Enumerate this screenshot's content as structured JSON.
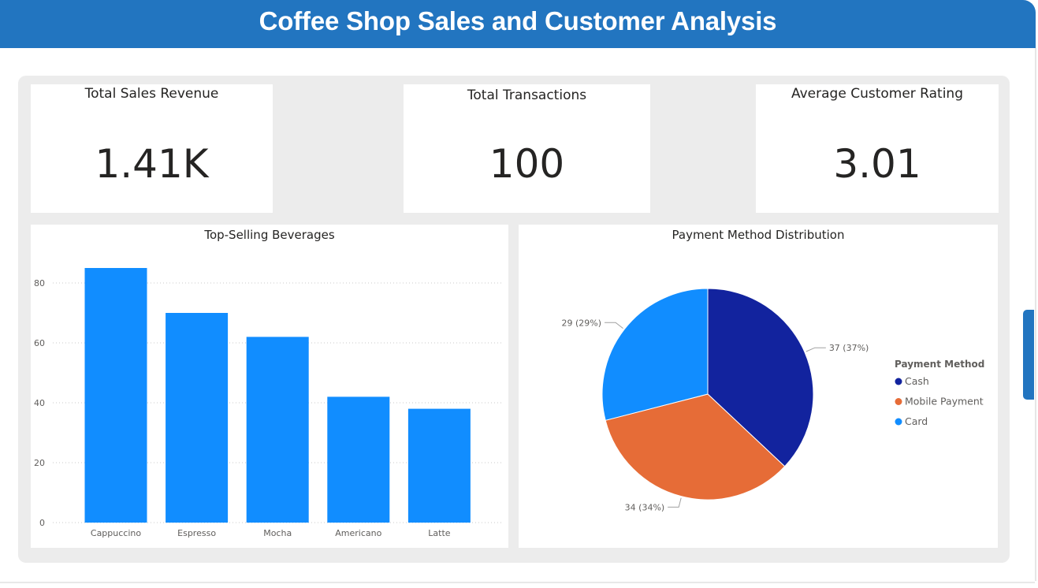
{
  "header": {
    "title": "Coffee Shop Sales and Customer Analysis"
  },
  "kpis": [
    {
      "label": "Total Sales Revenue",
      "value": "1.41K"
    },
    {
      "label": "Total Transactions",
      "value": "100"
    },
    {
      "label": "Average Customer Rating",
      "value": "3.01"
    }
  ],
  "colors": {
    "header": "#2275c0",
    "bar": "#118dff",
    "cash": "#12239e",
    "mobile": "#e66c37",
    "card": "#118dff"
  },
  "chart_data": [
    {
      "type": "bar",
      "title": "Top-Selling Beverages",
      "categories": [
        "Cappuccino",
        "Espresso",
        "Mocha",
        "Americano",
        "Latte"
      ],
      "values": [
        85,
        70,
        62,
        42,
        38
      ],
      "yticks": [
        "0",
        "20",
        "40",
        "60",
        "80"
      ],
      "ylim": [
        0,
        90
      ],
      "grid": true
    },
    {
      "type": "pie",
      "title": "Payment Method Distribution",
      "legend_title": "Payment Method",
      "legend_position": "right",
      "slices": [
        {
          "name": "Cash",
          "value": 37,
          "label": "37 (37%)",
          "color": "#12239e"
        },
        {
          "name": "Mobile Payment",
          "value": 34,
          "label": "34 (34%)",
          "color": "#e66c37"
        },
        {
          "name": "Card",
          "value": 29,
          "label": "29 (29%)",
          "color": "#118dff"
        }
      ]
    }
  ]
}
